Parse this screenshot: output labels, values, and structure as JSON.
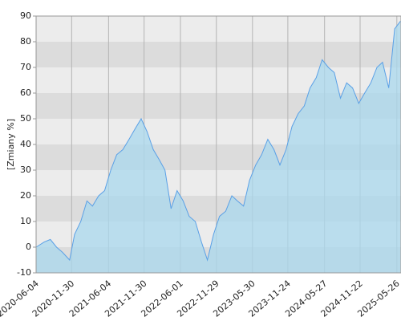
{
  "chart_data": {
    "type": "area",
    "y_label": "[Zmiany %]",
    "x": [
      "2020-06-04",
      "2020-07-15",
      "2020-08-15",
      "2020-09-15",
      "2020-10-15",
      "2020-11-20",
      "2020-12-15",
      "2021-01-15",
      "2021-02-15",
      "2021-03-15",
      "2021-04-15",
      "2021-05-15",
      "2021-06-15",
      "2021-07-15",
      "2021-08-15",
      "2021-09-15",
      "2021-10-15",
      "2021-11-15",
      "2021-12-15",
      "2022-01-15",
      "2022-02-15",
      "2022-03-15",
      "2022-04-15",
      "2022-05-15",
      "2022-06-15",
      "2022-07-15",
      "2022-08-15",
      "2022-09-15",
      "2022-10-15",
      "2022-11-15",
      "2022-12-15",
      "2023-01-15",
      "2023-02-15",
      "2023-03-15",
      "2023-04-15",
      "2023-05-15",
      "2023-06-15",
      "2023-07-15",
      "2023-08-15",
      "2023-09-15",
      "2023-10-15",
      "2023-11-15",
      "2023-12-15",
      "2024-01-15",
      "2024-02-15",
      "2024-03-15",
      "2024-04-15",
      "2024-05-15",
      "2024-06-15",
      "2024-07-15",
      "2024-08-15",
      "2024-09-15",
      "2024-10-15",
      "2024-11-15",
      "2024-12-15",
      "2025-01-15",
      "2025-02-15",
      "2025-03-15",
      "2025-04-15",
      "2025-05-15",
      "2025-06-13"
    ],
    "values": [
      0,
      2,
      3,
      0,
      -2,
      -5,
      5,
      10,
      18,
      16,
      20,
      22,
      30,
      36,
      38,
      42,
      46,
      50,
      45,
      38,
      34,
      30,
      15,
      22,
      18,
      12,
      10,
      2,
      -5,
      5,
      12,
      14,
      20,
      18,
      16,
      26,
      32,
      36,
      42,
      38,
      32,
      38,
      47,
      52,
      55,
      62,
      66,
      73,
      70,
      68,
      58,
      64,
      62,
      56,
      60,
      64,
      70,
      72,
      62,
      85,
      88
    ],
    "color": "#5aa0e6",
    "fill_color": "#a9d8ee",
    "band_colors": [
      "#dcdcdc",
      "#ececec"
    ],
    "xlim": [
      "2020-06-04",
      "2025-06-16"
    ],
    "xticks": [
      "2020-06-04",
      "2020-11-30",
      "2021-06-04",
      "2021-11-30",
      "2022-06-01",
      "2022-11-29",
      "2023-05-30",
      "2023-11-24",
      "2024-05-27",
      "2024-11-22",
      "2025-05-26"
    ],
    "ylim": [
      -10,
      90
    ],
    "yticks": [
      -10,
      0,
      10,
      20,
      30,
      40,
      50,
      60,
      70,
      80,
      90
    ],
    "grid": true
  }
}
